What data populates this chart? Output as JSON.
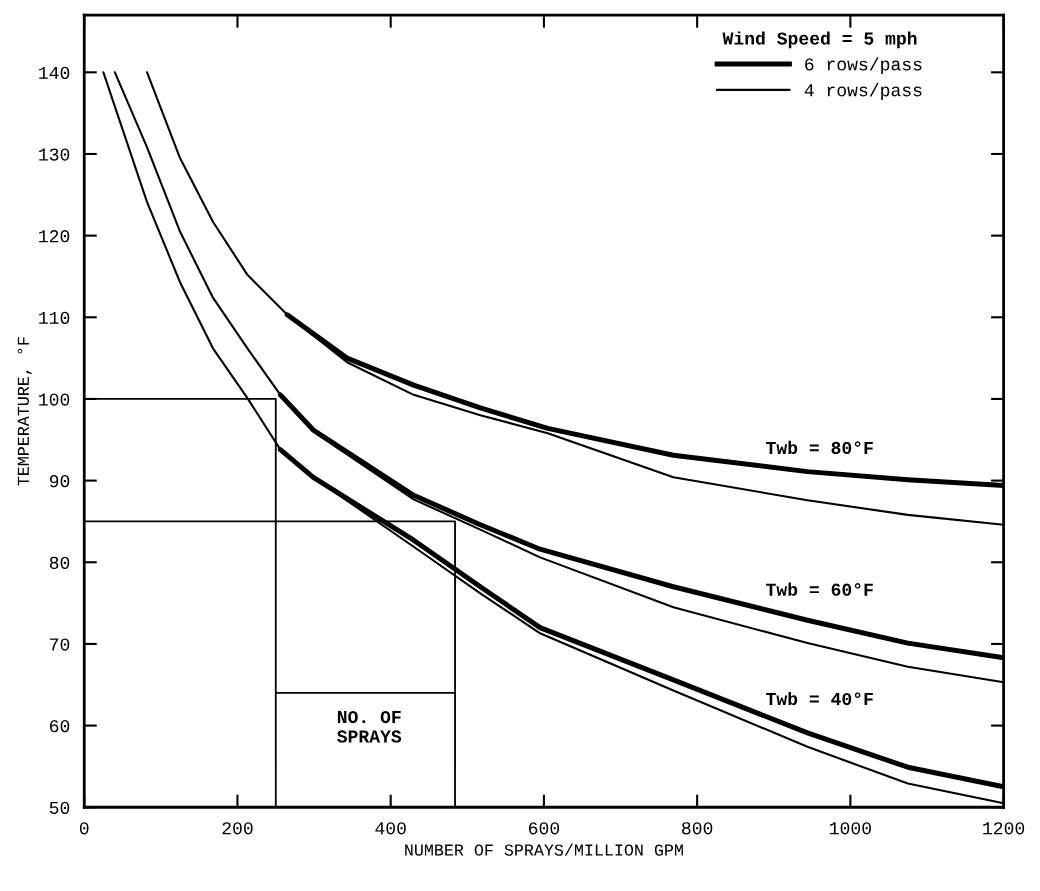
{
  "chart_data": {
    "type": "line",
    "xlabel": "NUMBER OF SPRAYS/MILLION GPM",
    "ylabel": "TEMPERATURE, °F",
    "legend_title": "Wind Speed = 5 mph",
    "legend": "top right",
    "grid": false,
    "marker": "none",
    "line_style": "solid",
    "xlim": [
      0,
      1200
    ],
    "xticks": [
      0,
      200,
      400,
      600,
      800,
      1000,
      1200
    ],
    "ylim": [
      50,
      147
    ],
    "yticks": [
      50,
      60,
      70,
      80,
      90,
      100,
      110,
      120,
      130,
      140
    ],
    "series": [
      {
        "name": "6 rows/pass",
        "color": "#000000",
        "x": [
          265,
          343,
          430,
          517,
          605,
          769,
          944,
          1075,
          1200
        ],
        "values": [
          110.3,
          105,
          101.7,
          98.9,
          96.4,
          93.1,
          91.1,
          90.1,
          89.4
        ]
      },
      {
        "name": "4 rows/pass",
        "color": "#000000",
        "x": [
          82,
          125,
          168,
          213,
          265,
          343,
          430,
          517,
          605,
          769,
          944,
          1075,
          1200
        ],
        "values": [
          140,
          129.5,
          121.7,
          115.2,
          110.3,
          104.5,
          100.5,
          98,
          95.8,
          90.4,
          87.6,
          85.8,
          84.6
        ]
      },
      {
        "color": "#000000",
        "x": [
          256,
          299,
          430,
          517,
          595,
          769,
          944,
          1075,
          1200
        ],
        "values": [
          100.5,
          96.2,
          88.2,
          84.6,
          81.6,
          77,
          72.9,
          70.1,
          68.3
        ]
      },
      {
        "color": "#000000",
        "x": [
          40,
          82,
          125,
          168,
          213,
          256,
          299,
          430,
          517,
          595,
          769,
          944,
          1075,
          1200
        ],
        "values": [
          140,
          130.8,
          120.5,
          112.4,
          106.2,
          100.5,
          96,
          87.7,
          84,
          80.6,
          74.5,
          70.1,
          67.2,
          65.3
        ]
      },
      {
        "color": "#000000",
        "x": [
          256,
          299,
          430,
          517,
          595,
          769,
          944,
          1075,
          1200
        ],
        "values": [
          93.8,
          90.4,
          82.7,
          77,
          72,
          65.6,
          59.1,
          54.9,
          52.5
        ]
      },
      {
        "color": "#000000",
        "x": [
          25,
          82,
          125,
          168,
          213,
          256,
          299,
          430,
          517,
          595,
          769,
          944,
          1075,
          1200
        ],
        "values": [
          140,
          124.1,
          114.3,
          106.2,
          100.1,
          93.8,
          90.4,
          81.9,
          76.2,
          71.3,
          64.3,
          57.4,
          52.9,
          50.5
        ]
      },
      {
        "color": "#000000",
        "x": [
          0,
          250,
          250
        ],
        "values": [
          100,
          100,
          50
        ]
      },
      {
        "color": "#000000",
        "x": [
          0,
          484,
          484
        ],
        "values": [
          85,
          85,
          50
        ]
      },
      {
        "color": "#000000",
        "x": [
          250,
          484
        ],
        "values": [
          64,
          64
        ]
      }
    ],
    "annotations": [
      "Twb = 80°F",
      "Twb = 60°F",
      "Twb = 40°F",
      "NO. OF\nSPRAYS"
    ]
  }
}
